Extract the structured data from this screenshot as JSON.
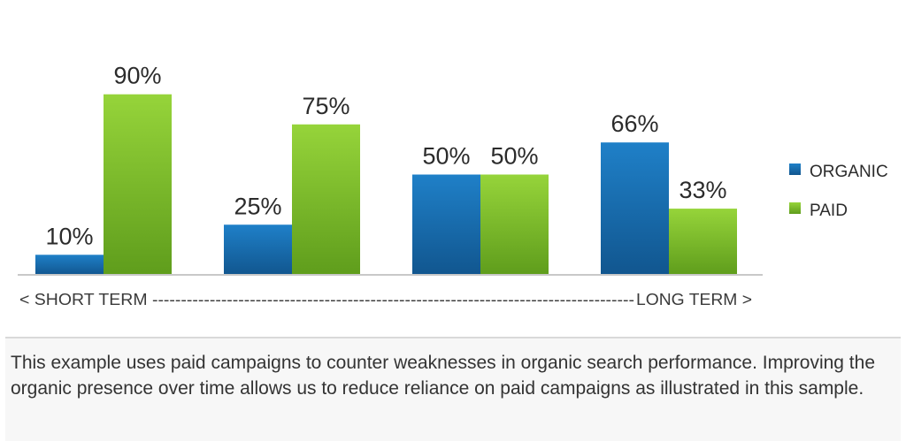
{
  "chart_data": {
    "type": "bar",
    "categories": [
      "",
      "",
      "",
      ""
    ],
    "series": [
      {
        "name": "ORGANIC",
        "values": [
          10,
          25,
          50,
          66
        ],
        "labels": [
          "10%",
          "25%",
          "50%",
          "66%"
        ],
        "color": "#1a6fb5"
      },
      {
        "name": "PAID",
        "values": [
          90,
          75,
          50,
          33
        ],
        "labels": [
          "90%",
          "75%",
          "50%",
          "33%"
        ],
        "color": "#7fbf2a"
      }
    ],
    "ylim": [
      0,
      100
    ],
    "grid": false,
    "legend": "right",
    "x_axis_note": {
      "left": "< SHORT TERM ------------------------------------------------------------------------------------",
      "right": "LONG TERM >"
    }
  },
  "caption": "This example uses paid campaigns to counter weaknesses in organic search performance. Improving the organic presence over time allows us to reduce reliance on paid campaigns as illustrated in this sample."
}
